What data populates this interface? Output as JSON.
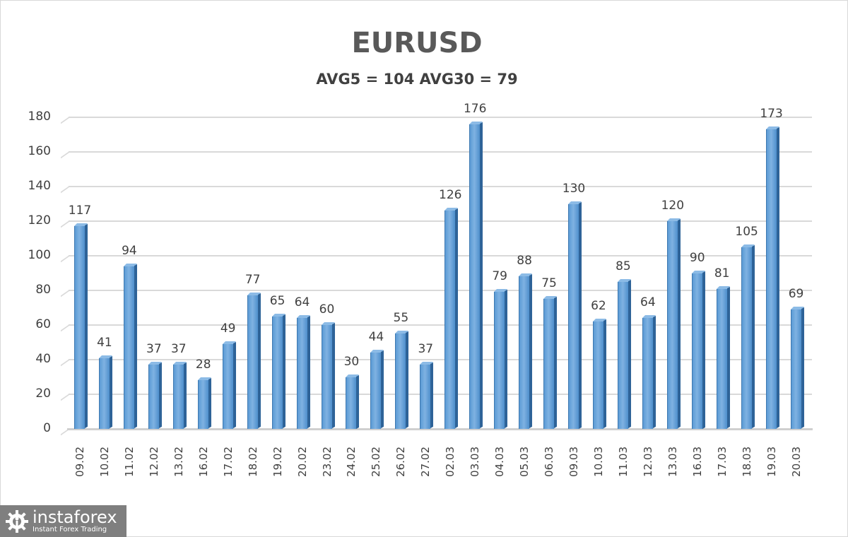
{
  "chart_data": {
    "type": "bar",
    "title": "EURUSD",
    "subtitle": "AVG5 = 104 AVG30 = 79",
    "xlabel": "",
    "ylabel": "",
    "ylim": [
      0,
      180
    ],
    "yticks": [
      0,
      20,
      40,
      60,
      80,
      100,
      120,
      140,
      160,
      180
    ],
    "grid": true,
    "legend": "none",
    "bar_color": "#5b9bd5",
    "categories": [
      "09.02",
      "10.02",
      "11.02",
      "12.02",
      "13.02",
      "16.02",
      "17.02",
      "18.02",
      "19.02",
      "20.02",
      "23.02",
      "24.02",
      "25.02",
      "26.02",
      "27.02",
      "02.03",
      "03.03",
      "04.03",
      "05.03",
      "06.03",
      "09.03",
      "10.03",
      "11.03",
      "12.03",
      "13.03",
      "16.03",
      "17.03",
      "18.03",
      "19.03",
      "20.03"
    ],
    "values": [
      117,
      41,
      94,
      37,
      37,
      28,
      49,
      77,
      65,
      64,
      60,
      30,
      44,
      55,
      37,
      126,
      176,
      79,
      88,
      75,
      130,
      62,
      85,
      64,
      120,
      90,
      81,
      105,
      173,
      69
    ],
    "data_labels": true
  },
  "logo": {
    "name": "instaforex",
    "tagline": "Instant Forex Trading"
  }
}
